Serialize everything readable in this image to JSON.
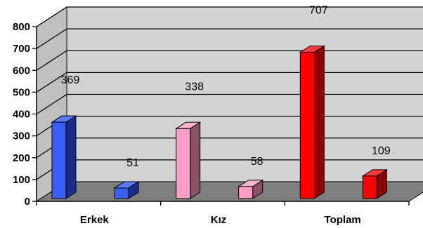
{
  "chart_data": {
    "type": "bar",
    "categories": [
      "Erkek",
      "Kız",
      "Toplam"
    ],
    "series": [
      {
        "values": [
          369,
          338,
          707
        ]
      },
      {
        "values": [
          51,
          58,
          109
        ]
      }
    ],
    "data_labels": [
      [
        "369",
        "338",
        "707"
      ],
      [
        "51",
        "58",
        "109"
      ]
    ],
    "y_ticks": [
      "0",
      "100",
      "200",
      "300",
      "400",
      "500",
      "600",
      "700",
      "800"
    ],
    "ylim": [
      0,
      800
    ],
    "grid": true,
    "legend": "none",
    "colors": {
      "Erkek": {
        "front": "#3a5ff2",
        "side": "#1a2d8a",
        "top": "#5a7af8"
      },
      "Kız": {
        "front": "#ff9fc8",
        "side": "#8a4f6a",
        "top": "#ffb3d3"
      },
      "Toplam": {
        "front": "#ff0000",
        "side": "#8c0000",
        "top": "#ff3a3a"
      },
      "wall": "#d3d3d3",
      "floor": "#7f7f7f",
      "grid": "#000000"
    }
  }
}
